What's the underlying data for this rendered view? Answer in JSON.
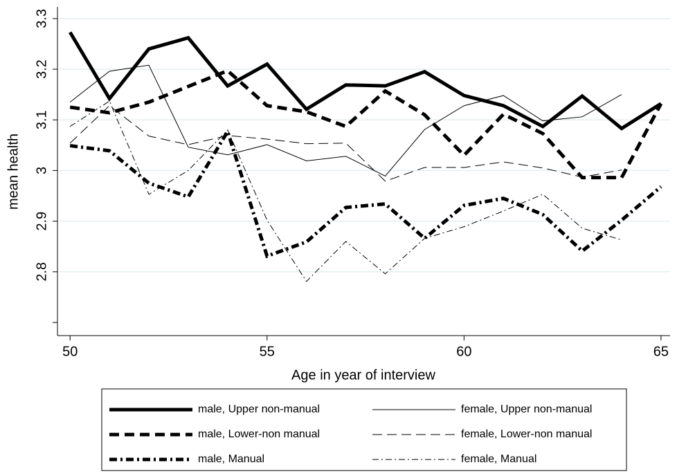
{
  "chart_data": {
    "type": "line",
    "x_label": "Age in year of interview",
    "y_label": "mean health",
    "x": [
      50,
      51,
      52,
      53,
      54,
      55,
      56,
      57,
      58,
      59,
      60,
      61,
      62,
      63,
      64,
      65
    ],
    "xlim": [
      49.68,
      65.23
    ],
    "ylim": [
      2.674,
      3.323
    ],
    "xticks": [
      50,
      55,
      60,
      65
    ],
    "yticks": [
      {
        "value": 2.8,
        "label": "2.8"
      },
      {
        "value": 2.9,
        "label": "2.9"
      },
      {
        "value": 3,
        "label": "3"
      },
      {
        "value": 3.1,
        "label": "3.1"
      },
      {
        "value": 3.2,
        "label": "3.2"
      },
      {
        "value": 3.3,
        "label": "3.3"
      }
    ],
    "minor_yticks": [
      2.7
    ],
    "grid": true,
    "legend": "bottom",
    "series": [
      {
        "name": "male, Upper non-manual",
        "color": "#000000",
        "dash": "solid",
        "weight": "thick",
        "values": [
          3.273,
          3.142,
          3.24,
          3.262,
          3.167,
          3.21,
          3.121,
          3.169,
          3.167,
          3.195,
          3.148,
          3.128,
          3.087,
          3.147,
          3.083,
          3.132
        ]
      },
      {
        "name": "female, Upper non-manual",
        "color": "#000000",
        "dash": "solid",
        "weight": "thin",
        "values": [
          3.135,
          3.196,
          3.208,
          3.046,
          3.031,
          3.051,
          3.019,
          3.028,
          2.989,
          3.081,
          3.128,
          3.148,
          3.098,
          3.106,
          3.15,
          null
        ]
      },
      {
        "name": "male, Lower-non manual",
        "color": "#000000",
        "dash": "dash",
        "weight": "thick",
        "values": [
          3.125,
          3.114,
          3.135,
          3.166,
          3.197,
          3.128,
          3.116,
          3.087,
          3.157,
          3.11,
          3.03,
          3.111,
          3.073,
          2.986,
          2.986,
          3.132
        ]
      },
      {
        "name": "female, Lower-non manual",
        "color": "#000000",
        "dash": "dash",
        "weight": "thin",
        "values": [
          3.054,
          3.128,
          3.068,
          3.051,
          3.069,
          3.062,
          3.053,
          3.054,
          2.979,
          3.006,
          3.006,
          3.017,
          3.005,
          2.987,
          3.001,
          null
        ]
      },
      {
        "name": "male, Manual",
        "color": "#000000",
        "dash": "dashdot",
        "weight": "thick",
        "values": [
          3.049,
          3.039,
          2.975,
          2.948,
          3.077,
          2.831,
          2.859,
          2.927,
          2.934,
          2.866,
          2.931,
          2.945,
          2.913,
          2.841,
          2.902,
          2.968
        ]
      },
      {
        "name": "female, Manual",
        "color": "#000000",
        "dash": "dashdot",
        "weight": "thin",
        "values": [
          3.087,
          3.137,
          2.953,
          3.0,
          3.08,
          2.902,
          2.781,
          2.86,
          2.796,
          2.866,
          2.889,
          2.92,
          2.953,
          2.886,
          2.863,
          null
        ]
      }
    ]
  }
}
